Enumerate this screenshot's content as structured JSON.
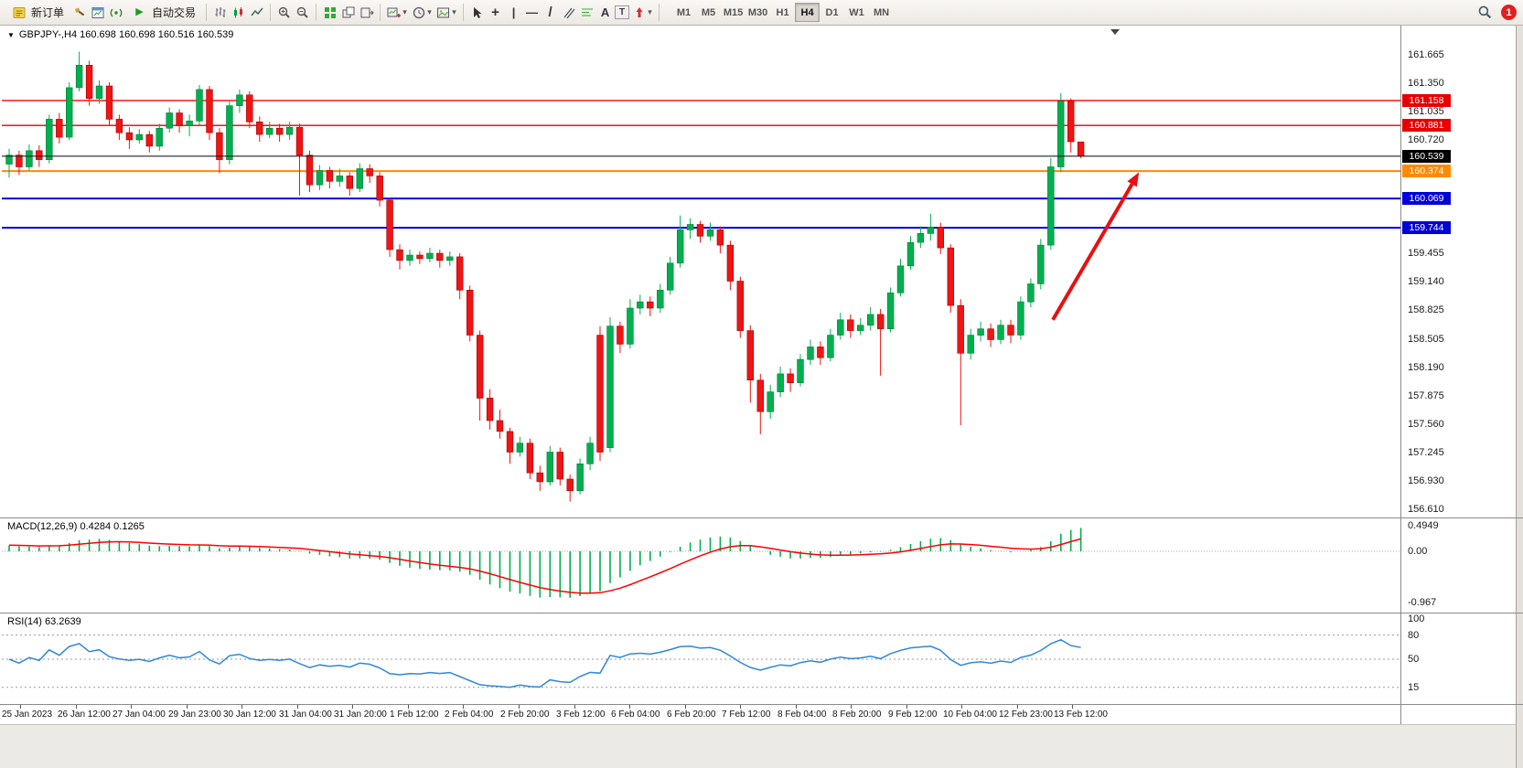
{
  "toolbar": {
    "new_order_label": "新订单",
    "auto_trading_label": "自动交易",
    "timeframes": [
      "M1",
      "M5",
      "M15",
      "M30",
      "H1",
      "H4",
      "D1",
      "W1",
      "MN"
    ],
    "active_timeframe": "H4",
    "notification_count": "1"
  },
  "icons": {
    "collapse": "▼",
    "dropdown": "▾",
    "play": "▶",
    "crosshair": "+",
    "vertical_line": "|",
    "horizontal_line": "—",
    "trendline": "/",
    "text_tool": "A",
    "label_tool": "T"
  },
  "chart": {
    "title": "GBPJPY-,H4  160.698 160.698 160.516 160.539",
    "price_axis": {
      "plain_labels": [
        "161.665",
        "161.350",
        "161.035",
        "160.720",
        "159.455",
        "159.140",
        "158.825",
        "158.505",
        "158.190",
        "157.875",
        "157.560",
        "157.245",
        "156.930",
        "156.610"
      ],
      "badges": [
        {
          "label": "161.158",
          "color": "#E80000"
        },
        {
          "label": "160.881",
          "color": "#E80000"
        },
        {
          "label": "160.539",
          "color": "#000000"
        },
        {
          "label": "160.374",
          "color": "#FF8A00"
        },
        {
          "label": "160.069",
          "color": "#0000D8"
        },
        {
          "label": "159.744",
          "color": "#0000D8"
        }
      ]
    }
  },
  "indicators": {
    "macd": {
      "label": "MACD(12,26,9) 0.4284 0.1265",
      "scale": [
        "0.4949",
        "0.00",
        "-0.967"
      ]
    },
    "rsi": {
      "label": "RSI(14) 63.2639",
      "scale": [
        "100",
        "80",
        "50",
        "15"
      ]
    }
  },
  "chart_data": {
    "type": "candlestick",
    "symbol": "GBPJPY-",
    "timeframe": "H4",
    "open_high_low_close_last_bar": [
      160.698,
      160.698,
      160.516,
      160.539
    ],
    "up_color": "#00B050",
    "down_color": "#F01414",
    "x_labels": [
      "25 Jan 2023",
      "26 Jan 12:00",
      "27 Jan 04:00",
      "29 Jan 23:00",
      "30 Jan 12:00",
      "31 Jan 04:00",
      "31 Jan 20:00",
      "1 Feb 12:00",
      "2 Feb 04:00",
      "2 Feb 20:00",
      "3 Feb 12:00",
      "6 Feb 04:00",
      "6 Feb 20:00",
      "7 Feb 12:00",
      "8 Feb 04:00",
      "8 Feb 20:00",
      "9 Feb 12:00",
      "10 Feb 04:00",
      "12 Feb 23:00",
      "13 Feb 12:00"
    ],
    "y_range": [
      156.61,
      161.665
    ],
    "ohlc": [
      [
        160.45,
        160.62,
        160.3,
        160.55
      ],
      [
        160.55,
        160.6,
        160.33,
        160.42
      ],
      [
        160.42,
        160.67,
        160.38,
        160.6
      ],
      [
        160.6,
        160.66,
        160.42,
        160.5
      ],
      [
        160.5,
        161.0,
        160.46,
        160.95
      ],
      [
        160.95,
        161.02,
        160.68,
        160.75
      ],
      [
        160.75,
        161.36,
        160.72,
        161.3
      ],
      [
        161.3,
        161.7,
        161.26,
        161.55
      ],
      [
        161.55,
        161.6,
        161.1,
        161.18
      ],
      [
        161.18,
        161.38,
        161.12,
        161.32
      ],
      [
        161.32,
        161.36,
        160.88,
        160.95
      ],
      [
        160.95,
        161.0,
        160.72,
        160.8
      ],
      [
        160.8,
        160.86,
        160.62,
        160.72
      ],
      [
        160.72,
        160.84,
        160.68,
        160.78
      ],
      [
        160.78,
        160.82,
        160.58,
        160.65
      ],
      [
        160.65,
        160.9,
        160.6,
        160.85
      ],
      [
        160.85,
        161.08,
        160.8,
        161.02
      ],
      [
        161.02,
        161.06,
        160.8,
        160.88
      ],
      [
        160.88,
        161.0,
        160.76,
        160.93
      ],
      [
        160.93,
        161.33,
        160.88,
        161.28
      ],
      [
        161.28,
        161.32,
        160.72,
        160.8
      ],
      [
        160.8,
        160.85,
        160.35,
        160.5
      ],
      [
        160.5,
        161.16,
        160.45,
        161.1
      ],
      [
        161.1,
        161.28,
        161.02,
        161.22
      ],
      [
        161.22,
        161.26,
        160.85,
        160.92
      ],
      [
        160.92,
        160.98,
        160.7,
        160.78
      ],
      [
        160.78,
        160.92,
        160.74,
        160.85
      ],
      [
        160.85,
        160.9,
        160.7,
        160.78
      ],
      [
        160.78,
        160.92,
        160.72,
        160.86
      ],
      [
        160.86,
        160.9,
        160.1,
        160.55
      ],
      [
        160.55,
        160.6,
        160.14,
        160.22
      ],
      [
        160.22,
        160.44,
        160.16,
        160.38
      ],
      [
        160.38,
        160.42,
        160.18,
        160.26
      ],
      [
        160.26,
        160.4,
        160.2,
        160.32
      ],
      [
        160.32,
        160.36,
        160.1,
        160.18
      ],
      [
        160.18,
        160.46,
        160.14,
        160.4
      ],
      [
        160.4,
        160.45,
        160.24,
        160.32
      ],
      [
        160.32,
        160.36,
        159.98,
        160.05
      ],
      [
        160.05,
        160.08,
        159.42,
        159.5
      ],
      [
        159.5,
        159.56,
        159.28,
        159.38
      ],
      [
        159.38,
        159.5,
        159.32,
        159.44
      ],
      [
        159.44,
        159.48,
        159.34,
        159.4
      ],
      [
        159.4,
        159.52,
        159.36,
        159.46
      ],
      [
        159.46,
        159.5,
        159.3,
        159.38
      ],
      [
        159.38,
        159.48,
        159.32,
        159.42
      ],
      [
        159.42,
        159.46,
        158.95,
        159.05
      ],
      [
        159.05,
        159.1,
        158.48,
        158.55
      ],
      [
        158.55,
        158.6,
        157.6,
        157.85
      ],
      [
        157.85,
        157.95,
        157.5,
        157.6
      ],
      [
        157.6,
        157.72,
        157.4,
        157.48
      ],
      [
        157.48,
        157.52,
        157.12,
        157.25
      ],
      [
        157.25,
        157.42,
        157.2,
        157.35
      ],
      [
        157.35,
        157.4,
        156.95,
        157.02
      ],
      [
        157.02,
        157.1,
        156.82,
        156.92
      ],
      [
        156.92,
        157.32,
        156.88,
        157.25
      ],
      [
        157.25,
        157.3,
        156.88,
        156.95
      ],
      [
        156.95,
        157.0,
        156.7,
        156.82
      ],
      [
        156.82,
        157.18,
        156.78,
        157.12
      ],
      [
        157.12,
        157.42,
        157.05,
        157.35
      ],
      [
        158.55,
        158.65,
        157.15,
        157.25
      ],
      [
        157.3,
        158.75,
        157.25,
        158.65
      ],
      [
        158.65,
        158.7,
        158.35,
        158.45
      ],
      [
        158.45,
        158.95,
        158.4,
        158.85
      ],
      [
        158.85,
        159.0,
        158.78,
        158.92
      ],
      [
        158.92,
        158.98,
        158.76,
        158.85
      ],
      [
        158.85,
        159.12,
        158.8,
        159.05
      ],
      [
        159.05,
        159.42,
        159.0,
        159.35
      ],
      [
        159.35,
        159.88,
        159.3,
        159.72
      ],
      [
        159.72,
        159.85,
        159.62,
        159.78
      ],
      [
        159.78,
        159.82,
        159.58,
        159.65
      ],
      [
        159.65,
        159.8,
        159.6,
        159.72
      ],
      [
        159.72,
        159.76,
        159.46,
        159.55
      ],
      [
        159.55,
        159.6,
        159.05,
        159.15
      ],
      [
        159.15,
        159.2,
        158.52,
        158.6
      ],
      [
        158.6,
        158.66,
        157.8,
        158.05
      ],
      [
        158.05,
        158.12,
        157.45,
        157.7
      ],
      [
        157.7,
        158.0,
        157.62,
        157.92
      ],
      [
        157.92,
        158.2,
        157.86,
        158.12
      ],
      [
        158.12,
        158.18,
        157.92,
        158.02
      ],
      [
        158.02,
        158.34,
        157.98,
        158.28
      ],
      [
        158.28,
        158.5,
        158.22,
        158.42
      ],
      [
        158.42,
        158.48,
        158.22,
        158.3
      ],
      [
        158.3,
        158.62,
        158.26,
        158.55
      ],
      [
        158.55,
        158.8,
        158.5,
        158.72
      ],
      [
        158.72,
        158.78,
        158.52,
        158.6
      ],
      [
        158.6,
        158.74,
        158.55,
        158.66
      ],
      [
        158.66,
        158.86,
        158.6,
        158.78
      ],
      [
        158.78,
        158.84,
        158.1,
        158.62
      ],
      [
        158.62,
        159.08,
        158.58,
        159.02
      ],
      [
        159.02,
        159.4,
        158.98,
        159.32
      ],
      [
        159.32,
        159.65,
        159.28,
        159.58
      ],
      [
        159.58,
        159.76,
        159.52,
        159.68
      ],
      [
        159.68,
        159.9,
        159.6,
        159.75
      ],
      [
        159.75,
        159.8,
        159.45,
        159.52
      ],
      [
        159.52,
        159.56,
        158.8,
        158.88
      ],
      [
        158.88,
        158.95,
        157.55,
        158.35
      ],
      [
        158.35,
        158.62,
        158.28,
        158.55
      ],
      [
        158.55,
        158.7,
        158.48,
        158.62
      ],
      [
        158.62,
        158.68,
        158.42,
        158.5
      ],
      [
        158.5,
        158.72,
        158.45,
        158.66
      ],
      [
        158.66,
        158.72,
        158.46,
        158.55
      ],
      [
        158.55,
        158.98,
        158.5,
        158.92
      ],
      [
        158.92,
        159.18,
        158.86,
        159.12
      ],
      [
        159.12,
        159.62,
        159.06,
        159.55
      ],
      [
        159.55,
        160.52,
        159.5,
        160.42
      ],
      [
        160.42,
        161.24,
        160.36,
        161.15
      ],
      [
        161.15,
        161.18,
        160.58,
        160.7
      ],
      [
        160.698,
        160.698,
        160.516,
        160.539
      ]
    ],
    "price_lines": [
      {
        "value": 161.158,
        "color": "#FF0000",
        "width": 1.4
      },
      {
        "value": 160.881,
        "color": "#E40000",
        "width": 1.4
      },
      {
        "value": 160.374,
        "color": "#FF8A00",
        "width": 2
      },
      {
        "value": 160.069,
        "color": "#0000E0",
        "width": 2
      },
      {
        "value": 159.744,
        "color": "#0000E0",
        "width": 2
      },
      {
        "value": 160.539,
        "color": "#202020",
        "width": 1.2,
        "role": "current"
      }
    ],
    "annotations": [
      {
        "type": "arrow",
        "from_bar": 104.2,
        "from_price": 158.72,
        "to_bar": 112.8,
        "to_price": 160.36,
        "color": "#E81010",
        "width": 4
      }
    ],
    "sub_indicators": {
      "macd": {
        "fast": 12,
        "slow": 26,
        "signal": 9,
        "main_value": 0.4284,
        "signal_value": 0.1265,
        "histogram_color": "#00B050",
        "signal_color": "#FF0000",
        "y_scale": [
          -0.967,
          0.4949
        ]
      },
      "rsi": {
        "period": 14,
        "value": 63.2639,
        "line_color": "#2F87D8",
        "levels": [
          80,
          50,
          15
        ],
        "y_scale": [
          0,
          100
        ]
      }
    }
  }
}
